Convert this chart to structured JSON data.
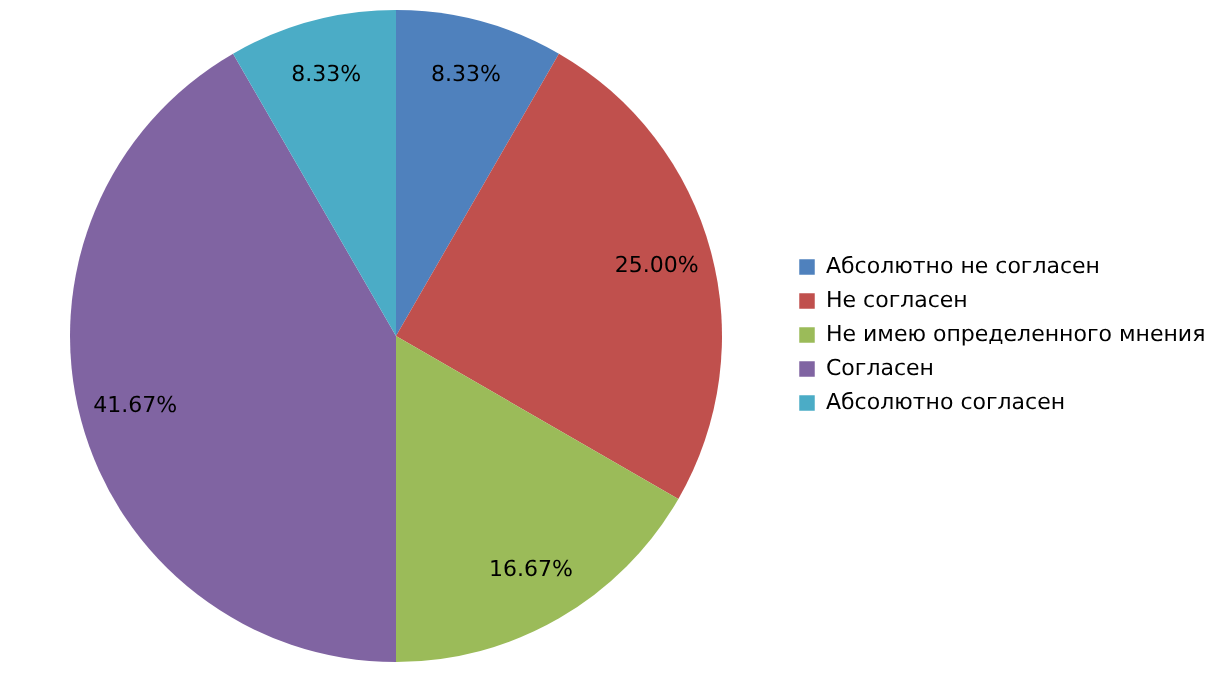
{
  "chart_data": {
    "type": "pie",
    "categories": [
      "Абсолютно не согласен",
      "Не согласен",
      "Не имею определенного мнения",
      "Согласен",
      "Абсолютно  согласен"
    ],
    "values": [
      8.33,
      25.0,
      16.67,
      41.67,
      8.33
    ],
    "value_labels": [
      "8.33%",
      "25.00%",
      "16.67%",
      "41.67%",
      "8.33%"
    ],
    "colors": [
      "#4f81bd",
      "#c0504d",
      "#9bbb59",
      "#8064a2",
      "#4bacc6"
    ],
    "legend": "right"
  }
}
